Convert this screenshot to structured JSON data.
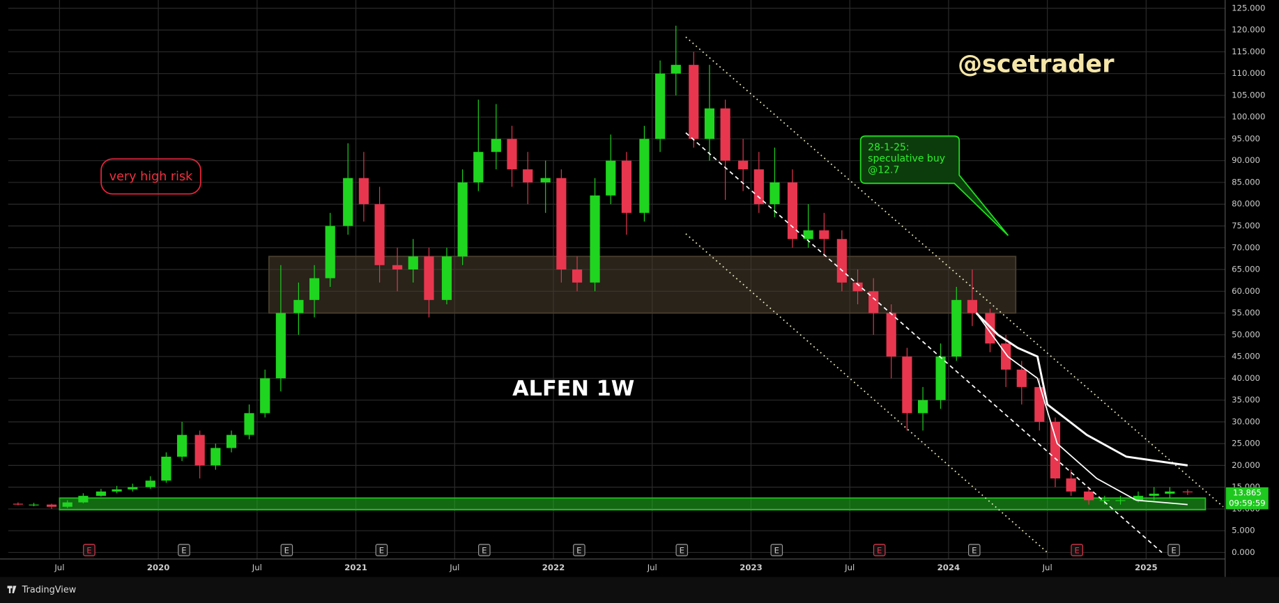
{
  "chart_data": {
    "type": "candlestick",
    "title": "ALFEN 1W",
    "author": "@scetrader",
    "risk_note": "very high risk",
    "callout": [
      "28-1-25:",
      "speculative buy",
      "@12.7"
    ],
    "last_price": 13.865,
    "countdown": "09:59:59",
    "up_color": "#1fd51f",
    "down_color": "#e8364f",
    "xlim": [
      2019.24,
      2025.4
    ],
    "ylim": [
      -1.5,
      126.9
    ],
    "grid": true,
    "xticks": [
      {
        "value": 2019.5,
        "label": "Jul"
      },
      2020,
      {
        "value": 2020.5,
        "label": "Jul"
      },
      2021,
      {
        "value": 2021.5,
        "label": "Jul"
      },
      2022,
      {
        "value": 2022.5,
        "label": "Jul"
      },
      2023,
      {
        "value": 2023.5,
        "label": "Jul"
      },
      2024,
      {
        "value": 2024.5,
        "label": "Jul"
      },
      2025
    ],
    "yticks": [
      {
        "value": 0,
        "label": "0.000"
      },
      {
        "value": 5,
        "label": "5.000"
      },
      {
        "value": 10,
        "label": "10.000"
      },
      {
        "value": 15,
        "label": "15.000"
      },
      {
        "value": 20,
        "label": "20.000"
      },
      {
        "value": 25,
        "label": "25.000"
      },
      {
        "value": 30,
        "label": "30.000"
      },
      {
        "value": 35,
        "label": "35.000"
      },
      {
        "value": 40,
        "label": "40.000"
      },
      {
        "value": 45,
        "label": "45.000"
      },
      {
        "value": 50,
        "label": "50.000"
      },
      {
        "value": 55,
        "label": "55.000"
      },
      {
        "value": 60,
        "label": "60.000"
      },
      {
        "value": 65,
        "label": "65.000"
      },
      {
        "value": 70,
        "label": "70.000"
      },
      {
        "value": 75,
        "label": "75.000"
      },
      {
        "value": 80,
        "label": "80.000"
      },
      {
        "value": 85,
        "label": "85.000"
      },
      {
        "value": 90,
        "label": "90.000"
      },
      {
        "value": 95,
        "label": "95.000"
      },
      {
        "value": 100,
        "label": "100.000"
      },
      {
        "value": 105,
        "label": "105.000"
      },
      {
        "value": 110,
        "label": "110.000"
      },
      {
        "value": 115,
        "label": "115.000"
      },
      {
        "value": 120,
        "label": "120.000"
      },
      {
        "value": 125,
        "label": "125.000"
      }
    ],
    "x": [
      2019.29,
      2019.37,
      2019.46,
      2019.54,
      2019.62,
      2019.71,
      2019.79,
      2019.87,
      2019.96,
      2020.04,
      2020.12,
      2020.21,
      2020.29,
      2020.37,
      2020.46,
      2020.54,
      2020.62,
      2020.71,
      2020.79,
      2020.87,
      2020.96,
      2021.04,
      2021.12,
      2021.21,
      2021.29,
      2021.37,
      2021.46,
      2021.54,
      2021.62,
      2021.71,
      2021.79,
      2021.87,
      2021.96,
      2022.04,
      2022.12,
      2022.21,
      2022.29,
      2022.37,
      2022.46,
      2022.54,
      2022.62,
      2022.71,
      2022.79,
      2022.87,
      2022.96,
      2023.04,
      2023.12,
      2023.21,
      2023.29,
      2023.37,
      2023.46,
      2023.54,
      2023.62,
      2023.71,
      2023.79,
      2023.87,
      2023.96,
      2024.04,
      2024.12,
      2024.21,
      2024.29,
      2024.37,
      2024.46,
      2024.54,
      2024.62,
      2024.71,
      2024.79,
      2024.87,
      2024.96,
      2025.04,
      2025.12,
      2025.21
    ],
    "open": [
      11.2,
      11,
      11,
      10.5,
      11.5,
      13,
      14,
      14.5,
      15,
      16.5,
      22,
      27,
      20,
      24,
      27,
      32,
      40,
      55,
      58,
      63,
      75,
      86,
      80,
      66,
      65,
      68,
      58,
      68,
      85,
      92,
      95,
      88,
      85,
      86,
      65,
      62,
      82,
      90,
      78,
      95,
      110,
      112,
      95,
      102,
      90,
      88,
      80,
      85,
      72,
      74,
      72,
      62,
      60,
      55,
      45,
      32,
      35,
      45,
      58,
      55,
      48,
      42,
      38,
      30,
      17,
      14,
      12,
      12,
      12,
      13,
      13.5,
      14
    ],
    "high": [
      11.5,
      11.4,
      11.2,
      12,
      13.6,
      14.6,
      15.3,
      15.8,
      17.5,
      23,
      30,
      28,
      25,
      28,
      34,
      42,
      66,
      62,
      66,
      78,
      94,
      92,
      84,
      70,
      72,
      70,
      70,
      88,
      104,
      103,
      98,
      92,
      90,
      88,
      68,
      86,
      96,
      92,
      98,
      113,
      121,
      115,
      112,
      104,
      95,
      92,
      93,
      88,
      80,
      78,
      74,
      65,
      63,
      57,
      47,
      38,
      48,
      61,
      65,
      56,
      50,
      44,
      40,
      31,
      19,
      15,
      13,
      13,
      14,
      15,
      15,
      14.5
    ],
    "low": [
      10.8,
      10.6,
      10,
      10.2,
      11.3,
      12.8,
      13.6,
      14,
      14.6,
      16,
      21,
      17,
      19,
      23,
      26,
      31,
      37,
      50,
      54,
      61,
      73,
      76,
      62,
      60,
      62,
      54,
      57,
      66,
      83,
      88,
      84,
      80,
      78,
      62,
      60,
      60,
      80,
      73,
      76,
      92,
      105,
      93,
      90,
      81,
      83,
      78,
      77,
      70,
      70,
      68,
      60,
      57,
      50,
      40,
      28,
      28,
      33,
      44,
      52,
      46,
      38,
      34,
      28,
      15,
      13,
      11,
      11,
      11,
      11.5,
      12,
      12.5,
      13.2
    ],
    "close": [
      11,
      11,
      10.5,
      11.5,
      13,
      14,
      14.5,
      15,
      16.5,
      22,
      27,
      20,
      24,
      27,
      32,
      40,
      55,
      58,
      63,
      75,
      86,
      80,
      66,
      65,
      68,
      58,
      68,
      85,
      92,
      95,
      88,
      85,
      86,
      65,
      62,
      82,
      90,
      78,
      95,
      110,
      112,
      95,
      102,
      90,
      88,
      80,
      85,
      72,
      74,
      72,
      62,
      60,
      55,
      45,
      32,
      35,
      45,
      58,
      55,
      48,
      42,
      38,
      30,
      17,
      14,
      12,
      12,
      12,
      13,
      13.5,
      14,
      13.9
    ],
    "moving_averages": [
      {
        "color": "#ffffff",
        "x": [
          2024.14,
          2024.25,
          2024.35,
          2024.45,
          2024.5,
          2024.7,
          2024.9,
          2025.21
        ],
        "values": [
          55,
          50,
          47,
          45,
          34,
          27,
          22,
          20
        ]
      },
      {
        "color": "#ffffff",
        "x": [
          2024.14,
          2024.3,
          2024.45,
          2024.55,
          2024.75,
          2024.95,
          2025.21
        ],
        "values": [
          55,
          45,
          40,
          25,
          17,
          12,
          11
        ]
      }
    ],
    "trendlines": [
      {
        "style": "dotted",
        "color": "#f0f0c0",
        "x": [
          2022.67,
          2025.39
        ],
        "values": [
          118.4,
          10.5
        ]
      },
      {
        "style": "dashed",
        "color": "#ffffff",
        "x": [
          2022.67,
          2025.08
        ],
        "values": [
          96.4,
          0
        ]
      },
      {
        "style": "dotted",
        "color": "#f0f0c0",
        "x": [
          2022.67,
          2024.5
        ],
        "values": [
          73.2,
          0
        ]
      }
    ],
    "zones": [
      {
        "color": "#4a4030",
        "x": [
          2020.56,
          2024.34
        ],
        "values": [
          68,
          55
        ]
      },
      {
        "color": "#20c020",
        "x": [
          2019.5,
          2025.3
        ],
        "values": [
          12.5,
          9.8
        ]
      }
    ],
    "earnings": {
      "x": [
        2019.65,
        2020.13,
        2020.65,
        2021.13,
        2021.65,
        2022.13,
        2022.65,
        2023.13,
        2023.65,
        2024.13,
        2024.65,
        2025.14
      ],
      "labels": [
        "E",
        "E",
        "E",
        "E",
        "E",
        "E",
        "E",
        "E",
        "E",
        "E",
        "E",
        "E"
      ],
      "colors": [
        "#e8364f",
        "#9a9a9a",
        "#9a9a9a",
        "#9a9a9a",
        "#9a9a9a",
        "#9a9a9a",
        "#9a9a9a",
        "#9a9a9a",
        "#e8364f",
        "#9a9a9a",
        "#e8364f",
        "#9a9a9a"
      ]
    }
  },
  "footer": "TradingView"
}
